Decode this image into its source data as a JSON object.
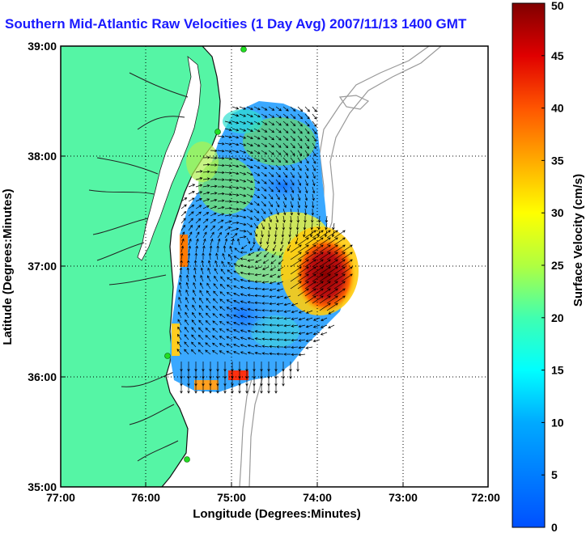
{
  "title": "Southern Mid-Atlantic Raw Velocities (1 Day Avg) 2007/11/13 1400 GMT",
  "map": {
    "x_label": "Longitude (Degrees:Minutes)",
    "y_label": "Latitude (Degrees:Minutes)",
    "x_ticks": [
      "77:00",
      "76:00",
      "75:00",
      "74:00",
      "73:00",
      "72:00"
    ],
    "y_ticks": [
      "39:00",
      "38:00",
      "37:00",
      "36:00",
      "35:00"
    ],
    "land_color": "#55f5a5",
    "ocean_color": "#ffffff",
    "station_color": "#22dd22"
  },
  "colorbar": {
    "label": "Surface Velocity (cm/s)",
    "ticks": [
      "0",
      "5",
      "10",
      "15",
      "20",
      "25",
      "30",
      "35",
      "40",
      "45",
      "50"
    ],
    "min": 0,
    "max": 50
  }
}
